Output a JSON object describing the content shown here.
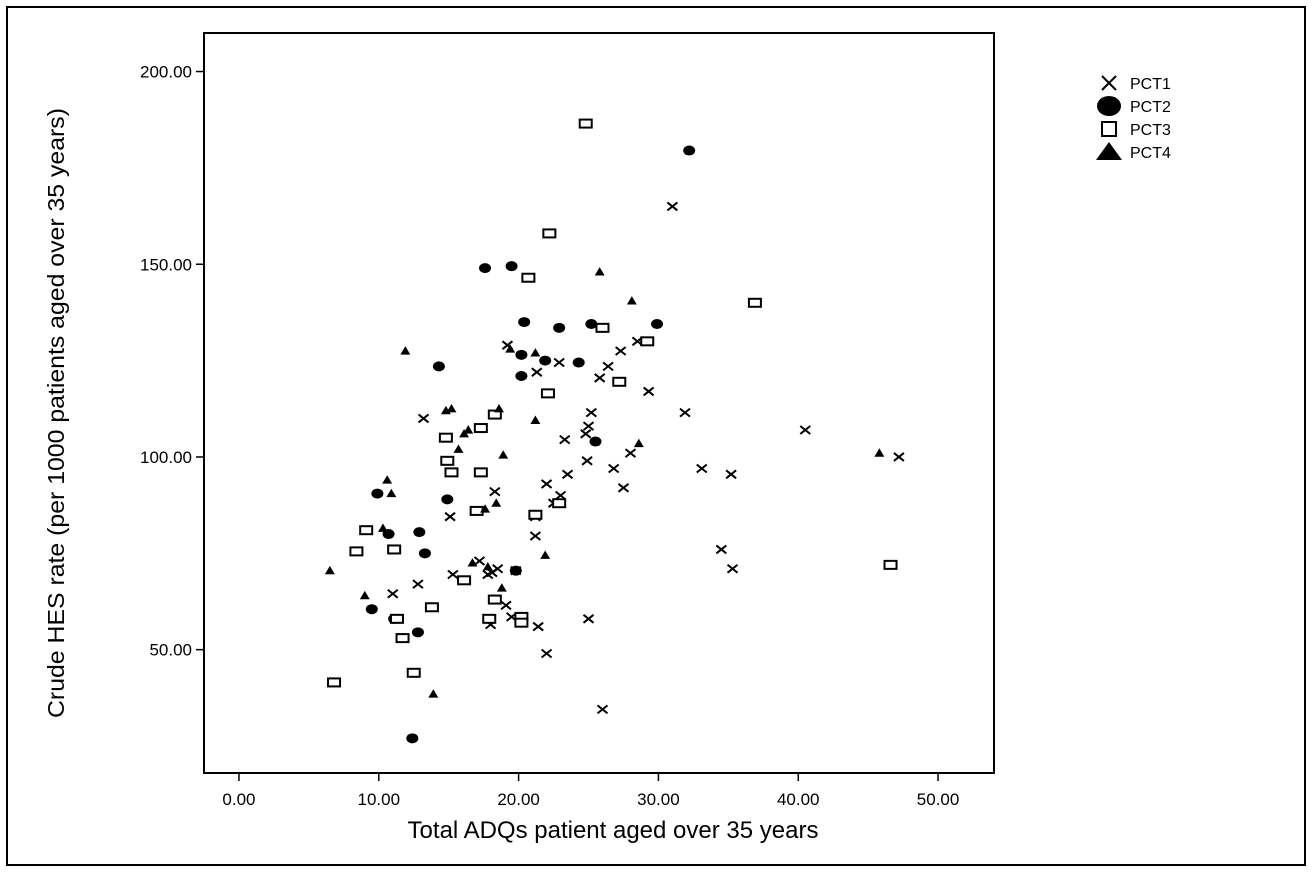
{
  "chart_data": {
    "type": "scatter",
    "title": "",
    "xlabel": "Total ADQs patient aged over 35 years",
    "ylabel": "Crude HES rate (per 1000 patients aged over 35 years)",
    "xlim": [
      -2.5,
      54
    ],
    "ylim": [
      18,
      210
    ],
    "x_ticks": [
      0,
      10,
      20,
      30,
      40,
      50
    ],
    "x_tick_labels": [
      "0.00",
      "10.00",
      "20.00",
      "30.00",
      "40.00",
      "50.00"
    ],
    "y_ticks": [
      50,
      100,
      150,
      200
    ],
    "y_tick_labels": [
      "50.00",
      "100.00",
      "150.00",
      "200.00"
    ],
    "grid": false,
    "legend_position": "top-right",
    "series": [
      {
        "name": "PCT1",
        "marker": "x",
        "points": [
          [
            31,
            165
          ],
          [
            13.2,
            110
          ],
          [
            15.1,
            84.5
          ],
          [
            18.3,
            91
          ],
          [
            21.2,
            84.5
          ],
          [
            21.2,
            79.5
          ],
          [
            21.3,
            122
          ],
          [
            22,
            93
          ],
          [
            23,
            90
          ],
          [
            23.3,
            104.5
          ],
          [
            23.5,
            95.5
          ],
          [
            22.5,
            88
          ],
          [
            24.9,
            99
          ],
          [
            24.8,
            106
          ],
          [
            25,
            108
          ],
          [
            25.2,
            111.5
          ],
          [
            25.8,
            120.5
          ],
          [
            26.4,
            123.5
          ],
          [
            26.8,
            97
          ],
          [
            27.3,
            127.5
          ],
          [
            27.5,
            92
          ],
          [
            28,
            101
          ],
          [
            28.5,
            130
          ],
          [
            29.3,
            117
          ],
          [
            29.1,
            130
          ],
          [
            31.9,
            111.5
          ],
          [
            33.1,
            97
          ],
          [
            35.2,
            95.5
          ],
          [
            35.3,
            71
          ],
          [
            34.5,
            76
          ],
          [
            40.5,
            107
          ],
          [
            47.2,
            100
          ],
          [
            19.2,
            129
          ],
          [
            22.9,
            124.5
          ],
          [
            12.8,
            67
          ],
          [
            11,
            64.5
          ],
          [
            15.3,
            69.5
          ],
          [
            17.2,
            73
          ],
          [
            18.1,
            70
          ],
          [
            19.1,
            61.5
          ],
          [
            19.8,
            70.5
          ],
          [
            20.1,
            58.5
          ],
          [
            18,
            56.5
          ],
          [
            21.4,
            56
          ],
          [
            22,
            49
          ],
          [
            25,
            58
          ],
          [
            26,
            34.5
          ],
          [
            19.5,
            58.5
          ],
          [
            17.8,
            69.5
          ],
          [
            18.5,
            71
          ]
        ]
      },
      {
        "name": "PCT2",
        "marker": "circle",
        "points": [
          [
            32.2,
            179.5
          ],
          [
            17.6,
            149
          ],
          [
            19.5,
            149.5
          ],
          [
            20.4,
            135
          ],
          [
            22.9,
            133.5
          ],
          [
            25.2,
            134.5
          ],
          [
            29.9,
            134.5
          ],
          [
            20.2,
            126.5
          ],
          [
            21.9,
            125
          ],
          [
            24.3,
            124.5
          ],
          [
            14.3,
            123.5
          ],
          [
            20.2,
            121
          ],
          [
            25.5,
            104
          ],
          [
            9.9,
            90.5
          ],
          [
            14.9,
            89
          ],
          [
            10.7,
            80
          ],
          [
            12.9,
            80.5
          ],
          [
            13.3,
            75
          ],
          [
            19.8,
            70.5
          ],
          [
            9.5,
            60.5
          ],
          [
            11.1,
            58
          ],
          [
            12.8,
            54.5
          ],
          [
            12.4,
            27
          ]
        ]
      },
      {
        "name": "PCT3",
        "marker": "square",
        "points": [
          [
            24.8,
            186.5
          ],
          [
            22.2,
            158
          ],
          [
            20.7,
            146.5
          ],
          [
            36.9,
            140
          ],
          [
            26,
            133.5
          ],
          [
            29.2,
            130
          ],
          [
            27.2,
            119.5
          ],
          [
            22.1,
            116.5
          ],
          [
            18.3,
            111
          ],
          [
            14.8,
            105
          ],
          [
            17.3,
            107.5
          ],
          [
            14.9,
            99
          ],
          [
            15.2,
            96
          ],
          [
            17.3,
            96
          ],
          [
            9.1,
            81
          ],
          [
            8.4,
            75.5
          ],
          [
            11.1,
            76
          ],
          [
            17,
            86
          ],
          [
            21.2,
            85
          ],
          [
            22.9,
            88
          ],
          [
            46.6,
            72
          ],
          [
            16.1,
            68
          ],
          [
            13.8,
            61
          ],
          [
            18.3,
            63
          ],
          [
            11.3,
            58
          ],
          [
            17.9,
            58
          ],
          [
            20.2,
            58.5
          ],
          [
            20.2,
            57
          ],
          [
            11.7,
            53
          ],
          [
            12.5,
            44
          ],
          [
            6.8,
            41.5
          ]
        ]
      },
      {
        "name": "PCT4",
        "marker": "triangle",
        "points": [
          [
            25.8,
            148
          ],
          [
            28.1,
            140.5
          ],
          [
            11.9,
            127.5
          ],
          [
            19.4,
            128
          ],
          [
            21.2,
            127
          ],
          [
            15.2,
            112.5
          ],
          [
            14.8,
            112
          ],
          [
            18.6,
            112.5
          ],
          [
            21.2,
            109.5
          ],
          [
            16.1,
            106
          ],
          [
            16.4,
            107
          ],
          [
            28.6,
            103.5
          ],
          [
            18.9,
            100.5
          ],
          [
            15.7,
            102
          ],
          [
            10.6,
            94
          ],
          [
            10.9,
            90.5
          ],
          [
            17.6,
            86.5
          ],
          [
            18.4,
            88
          ],
          [
            10.3,
            81.5
          ],
          [
            21.9,
            74.5
          ],
          [
            6.5,
            70.5
          ],
          [
            16.7,
            72.5
          ],
          [
            17.8,
            71.5
          ],
          [
            45.8,
            101
          ],
          [
            9,
            64
          ],
          [
            18.8,
            66
          ],
          [
            13.9,
            38.5
          ]
        ]
      }
    ]
  }
}
